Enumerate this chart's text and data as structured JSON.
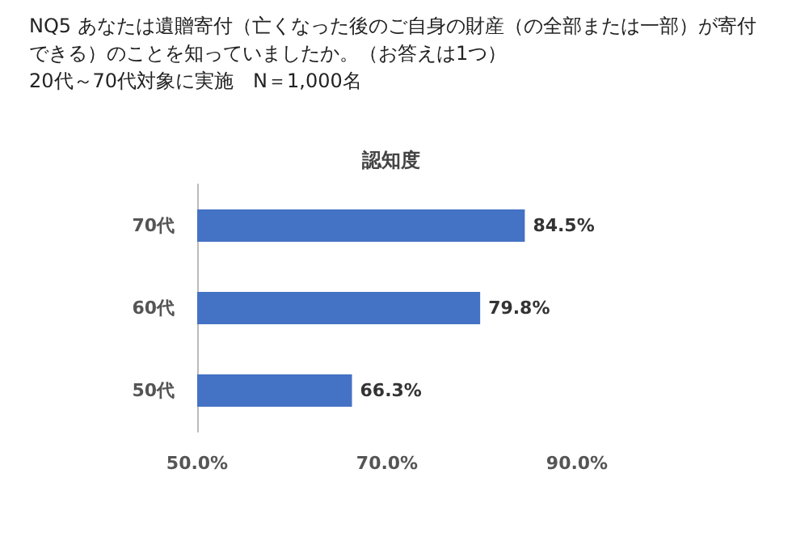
{
  "chart_data": {
    "type": "bar",
    "orientation": "horizontal",
    "annotations": [
      "NQ5 あなたは遺贈寄付（亡くなった後のご自身の財産（の全部または一部）が寄付できる）のことを知っていましたか。（お答えは1つ）",
      "20代～70代対象に実施　N＝1,000名"
    ],
    "title": "認知度",
    "categories": [
      "70代",
      "60代",
      "50代"
    ],
    "values": [
      84.5,
      79.8,
      66.3
    ],
    "value_labels": [
      "84.5%",
      "79.8%",
      "66.3%"
    ],
    "color": "#4472c4",
    "xlim": [
      50,
      90
    ],
    "xticks": [
      {
        "value": 50,
        "label": "50.0%"
      },
      {
        "value": 70,
        "label": "70.0%"
      },
      {
        "value": 90,
        "label": "90.0%"
      }
    ],
    "grid": false
  }
}
